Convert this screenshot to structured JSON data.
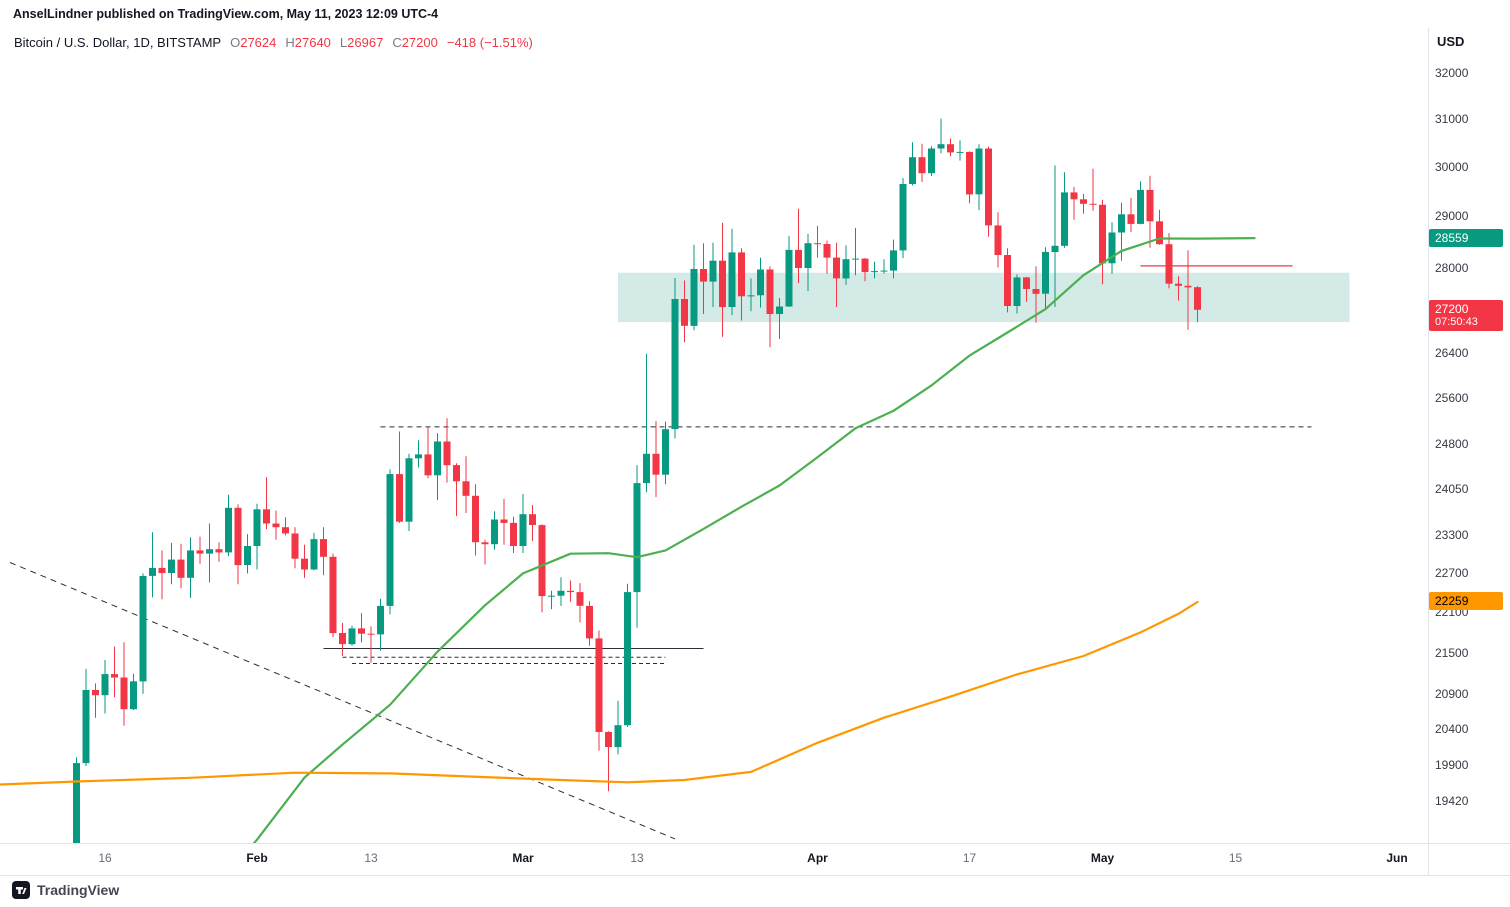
{
  "header": {
    "publisher_note": "AnselLindner published on TradingView.com, May 11, 2023 12:09 UTC-4"
  },
  "legend": {
    "symbol": "Bitcoin / U.S. Dollar, 1D, BITSTAMP",
    "o_label": "O",
    "o": "27624",
    "h_label": "H",
    "h": "27640",
    "l_label": "L",
    "l": "26967",
    "c_label": "C",
    "c": "27200",
    "change": "−418 (−1.51%)"
  },
  "axis": {
    "currency_label": "USD",
    "y_ticks": [
      {
        "label": "32000",
        "price": 32000
      },
      {
        "label": "31000",
        "price": 31000
      },
      {
        "label": "30000",
        "price": 30000
      },
      {
        "label": "29000",
        "price": 29000
      },
      {
        "label": "28000",
        "price": 28000
      },
      {
        "label": "26400",
        "price": 26400
      },
      {
        "label": "25600",
        "price": 25600
      },
      {
        "label": "24800",
        "price": 24800
      },
      {
        "label": "24050",
        "price": 24050
      },
      {
        "label": "23300",
        "price": 23300
      },
      {
        "label": "22700",
        "price": 22700
      },
      {
        "label": "22100",
        "price": 22100
      },
      {
        "label": "21500",
        "price": 21500
      },
      {
        "label": "20900",
        "price": 20900
      },
      {
        "label": "20400",
        "price": 20400
      },
      {
        "label": "19900",
        "price": 19900
      },
      {
        "label": "19420",
        "price": 19420
      }
    ],
    "x_ticks": [
      {
        "label": "16",
        "date": "2023-01-16",
        "strong": false
      },
      {
        "label": "Feb",
        "date": "2023-02-01",
        "strong": true
      },
      {
        "label": "13",
        "date": "2023-02-13",
        "strong": false
      },
      {
        "label": "Mar",
        "date": "2023-03-01",
        "strong": true
      },
      {
        "label": "13",
        "date": "2023-03-13",
        "strong": false
      },
      {
        "label": "Apr",
        "date": "2023-04-01",
        "strong": true
      },
      {
        "label": "17",
        "date": "2023-04-17",
        "strong": false
      },
      {
        "label": "May",
        "date": "2023-05-01",
        "strong": true
      },
      {
        "label": "15",
        "date": "2023-05-15",
        "strong": false
      },
      {
        "label": "Jun",
        "date": "2023-06-01",
        "strong": true
      }
    ]
  },
  "badges": [
    {
      "name": "ma-green-price-badge",
      "label": "28559",
      "price": 28559,
      "bg": "#089981",
      "fg": "#ffffff"
    },
    {
      "name": "last-price-badge",
      "label": "27200",
      "sub": "07:50:43",
      "price": 27200,
      "bg": "#f23645",
      "fg": "#ffffff"
    },
    {
      "name": "ma-orange-price-badge",
      "label": "22259",
      "price": 22259,
      "bg": "#ff9800",
      "fg": "#000000"
    }
  ],
  "footer": {
    "brand": "TradingView"
  },
  "chart_data": {
    "type": "candlestick",
    "title": "Bitcoin / U.S. Dollar",
    "interval": "1D",
    "exchange": "BITSTAMP",
    "scale": "log",
    "visible_price_range": [
      18876,
      32985
    ],
    "last_bar": {
      "open": 27624,
      "high": 27640,
      "low": 26967,
      "close": 27200,
      "change": -418,
      "change_pct": -1.51,
      "countdown": "07:50:43"
    },
    "colors": {
      "up": "#089981",
      "down": "#f23645"
    },
    "start_date": "2023-01-13",
    "candles": [
      [
        18850,
        20010,
        18720,
        19930
      ],
      [
        19930,
        21260,
        19890,
        20955
      ],
      [
        20955,
        21050,
        20560,
        20880
      ],
      [
        20880,
        21390,
        20620,
        21185
      ],
      [
        21185,
        21590,
        20850,
        21135
      ],
      [
        21135,
        21650,
        20450,
        20680
      ],
      [
        20680,
        21190,
        20670,
        21080
      ],
      [
        21080,
        22700,
        20900,
        22660
      ],
      [
        22660,
        23350,
        22330,
        22785
      ],
      [
        22785,
        23060,
        22300,
        22705
      ],
      [
        22705,
        23180,
        22530,
        22915
      ],
      [
        22915,
        23165,
        22470,
        22630
      ],
      [
        22630,
        23270,
        22320,
        23060
      ],
      [
        23060,
        23280,
        22850,
        23010
      ],
      [
        23010,
        23490,
        22560,
        23080
      ],
      [
        23080,
        23190,
        22880,
        23030
      ],
      [
        23030,
        23960,
        22970,
        23745
      ],
      [
        23745,
        23800,
        22530,
        22830
      ],
      [
        22830,
        23320,
        22700,
        23130
      ],
      [
        23130,
        23810,
        22760,
        23720
      ],
      [
        23720,
        24250,
        23400,
        23490
      ],
      [
        23490,
        23700,
        23230,
        23430
      ],
      [
        23430,
        23590,
        23300,
        23330
      ],
      [
        23330,
        23430,
        22780,
        22930
      ],
      [
        22930,
        23150,
        22630,
        22760
      ],
      [
        22760,
        23340,
        22750,
        23240
      ],
      [
        23240,
        23430,
        22670,
        22960
      ],
      [
        22960,
        23010,
        21730,
        21790
      ],
      [
        21790,
        21940,
        21450,
        21625
      ],
      [
        21625,
        21900,
        21600,
        21860
      ],
      [
        21860,
        22090,
        21650,
        21780
      ],
      [
        21780,
        21890,
        21350,
        21770
      ],
      [
        21770,
        22310,
        21530,
        22200
      ],
      [
        22200,
        24380,
        22070,
        24300
      ],
      [
        24300,
        25020,
        23500,
        23520
      ],
      [
        23520,
        24640,
        23370,
        24565
      ],
      [
        24565,
        24870,
        24410,
        24630
      ],
      [
        24630,
        25100,
        24230,
        24280
      ],
      [
        24280,
        24990,
        23870,
        24850
      ],
      [
        24850,
        25250,
        24160,
        24450
      ],
      [
        24450,
        24480,
        23610,
        24180
      ],
      [
        24180,
        24600,
        23660,
        23940
      ],
      [
        23940,
        24130,
        22980,
        23190
      ],
      [
        23190,
        23230,
        22840,
        23160
      ],
      [
        23160,
        23690,
        23070,
        23555
      ],
      [
        23555,
        23890,
        23150,
        23500
      ],
      [
        23500,
        23600,
        23020,
        23130
      ],
      [
        23130,
        23970,
        23020,
        23640
      ],
      [
        23640,
        23790,
        23210,
        23465
      ],
      [
        23465,
        23480,
        22100,
        22350
      ],
      [
        22350,
        22430,
        22150,
        22355
      ],
      [
        22355,
        22640,
        22200,
        22430
      ],
      [
        22430,
        22590,
        22260,
        22410
      ],
      [
        22410,
        22550,
        21950,
        22200
      ],
      [
        22200,
        22270,
        21600,
        21710
      ],
      [
        21710,
        21830,
        20100,
        20360
      ],
      [
        20360,
        20370,
        19550,
        20150
      ],
      [
        20150,
        20800,
        20050,
        20455
      ],
      [
        20455,
        22540,
        20430,
        22410
      ],
      [
        22410,
        24450,
        21870,
        24150
      ],
      [
        24150,
        26390,
        24000,
        24640
      ],
      [
        24640,
        25200,
        23920,
        24290
      ],
      [
        24290,
        25190,
        24130,
        25060
      ],
      [
        25060,
        27800,
        24900,
        27400
      ],
      [
        27400,
        27750,
        26600,
        26900
      ],
      [
        26900,
        28440,
        26820,
        27970
      ],
      [
        27970,
        28470,
        27120,
        27730
      ],
      [
        27730,
        28480,
        27250,
        28130
      ],
      [
        28130,
        28870,
        26700,
        27250
      ],
      [
        27250,
        28750,
        27100,
        28290
      ],
      [
        28290,
        28370,
        27000,
        27450
      ],
      [
        27450,
        27790,
        27170,
        27470
      ],
      [
        27470,
        28190,
        27240,
        27960
      ],
      [
        27960,
        28020,
        26510,
        27120
      ],
      [
        27120,
        27420,
        26660,
        27260
      ],
      [
        27260,
        28610,
        27250,
        28340
      ],
      [
        28340,
        29150,
        27700,
        27990
      ],
      [
        27990,
        28650,
        27550,
        28470
      ],
      [
        28470,
        28810,
        28190,
        28455
      ],
      [
        28455,
        28520,
        27880,
        28190
      ],
      [
        28190,
        28480,
        27250,
        27790
      ],
      [
        27790,
        28430,
        27670,
        28160
      ],
      [
        28160,
        28770,
        27850,
        28170
      ],
      [
        28170,
        28180,
        27740,
        27910
      ],
      [
        27910,
        28110,
        27790,
        27930
      ],
      [
        27930,
        28160,
        27880,
        27940
      ],
      [
        27940,
        28540,
        27790,
        28330
      ],
      [
        28330,
        29770,
        28180,
        29650
      ],
      [
        29650,
        30510,
        29620,
        30200
      ],
      [
        30200,
        30480,
        29690,
        29870
      ],
      [
        29870,
        30430,
        29810,
        30380
      ],
      [
        30380,
        31010,
        30280,
        30470
      ],
      [
        30470,
        30590,
        30220,
        30300
      ],
      [
        30300,
        30550,
        30130,
        30310
      ],
      [
        30310,
        30320,
        29260,
        29440
      ],
      [
        29440,
        30470,
        29120,
        30380
      ],
      [
        30380,
        30420,
        28600,
        28820
      ],
      [
        28820,
        29080,
        28000,
        28240
      ],
      [
        28240,
        28370,
        27150,
        27270
      ],
      [
        27270,
        27870,
        27130,
        27810
      ],
      [
        27810,
        27820,
        27350,
        27590
      ],
      [
        27590,
        28020,
        26960,
        27500
      ],
      [
        27500,
        28390,
        27200,
        28300
      ],
      [
        28300,
        30030,
        27250,
        28420
      ],
      [
        28420,
        29890,
        28380,
        29480
      ],
      [
        29480,
        29590,
        28930,
        29340
      ],
      [
        29340,
        29450,
        29050,
        29250
      ],
      [
        29250,
        29960,
        29110,
        29230
      ],
      [
        29230,
        29330,
        27680,
        28080
      ],
      [
        28080,
        28880,
        27880,
        28680
      ],
      [
        28680,
        29270,
        28130,
        29040
      ],
      [
        29040,
        29370,
        28690,
        28850
      ],
      [
        28850,
        29700,
        28840,
        29530
      ],
      [
        29530,
        29820,
        28380,
        28900
      ],
      [
        28900,
        29130,
        28440,
        28450
      ],
      [
        28450,
        28670,
        27600,
        27690
      ],
      [
        27690,
        27830,
        27370,
        27650
      ],
      [
        27650,
        28330,
        26830,
        27620
      ],
      [
        27624,
        27640,
        26967,
        27200
      ]
    ],
    "overlays": [
      {
        "name": "ma-50-green-line",
        "color": "#4caf50",
        "last_value": 28559,
        "points": [
          [
            "2023-01-28",
            18350
          ],
          [
            "2023-02-01",
            18910
          ],
          [
            "2023-02-06",
            19733
          ],
          [
            "2023-02-10",
            20185
          ],
          [
            "2023-02-15",
            20744
          ],
          [
            "2023-02-20",
            21513
          ],
          [
            "2023-02-25",
            22208
          ],
          [
            "2023-03-01",
            22700
          ],
          [
            "2023-03-06",
            23009
          ],
          [
            "2023-03-10",
            23016
          ],
          [
            "2023-03-13",
            22953
          ],
          [
            "2023-03-16",
            23061
          ],
          [
            "2023-03-20",
            23404
          ],
          [
            "2023-03-24",
            23763
          ],
          [
            "2023-03-28",
            24110
          ],
          [
            "2023-04-01",
            24582
          ],
          [
            "2023-04-05",
            25076
          ],
          [
            "2023-04-09",
            25378
          ],
          [
            "2023-04-13",
            25825
          ],
          [
            "2023-04-17",
            26358
          ],
          [
            "2023-04-21",
            26778
          ],
          [
            "2023-04-25",
            27211
          ],
          [
            "2023-04-29",
            27852
          ],
          [
            "2023-05-03",
            28320
          ],
          [
            "2023-05-07",
            28562
          ],
          [
            "2023-05-11",
            28559
          ],
          [
            "2023-05-17",
            28570
          ]
        ]
      },
      {
        "name": "ma-200-orange-line",
        "color": "#ff9800",
        "last_value": 22259,
        "points": [
          [
            "2023-01-05",
            19640
          ],
          [
            "2023-01-13",
            19680
          ],
          [
            "2023-01-25",
            19730
          ],
          [
            "2023-02-05",
            19800
          ],
          [
            "2023-02-15",
            19790
          ],
          [
            "2023-02-25",
            19740
          ],
          [
            "2023-03-05",
            19700
          ],
          [
            "2023-03-12",
            19670
          ],
          [
            "2023-03-18",
            19700
          ],
          [
            "2023-03-25",
            19810
          ],
          [
            "2023-04-01",
            20210
          ],
          [
            "2023-04-08",
            20560
          ],
          [
            "2023-04-15",
            20860
          ],
          [
            "2023-04-22",
            21180
          ],
          [
            "2023-04-29",
            21450
          ],
          [
            "2023-05-05",
            21800
          ],
          [
            "2023-05-09",
            22080
          ],
          [
            "2023-05-11",
            22259
          ]
        ]
      }
    ],
    "zones": [
      {
        "name": "support-zone-teal",
        "from": "2023-03-11",
        "to": "2023-05-27",
        "top": 27900,
        "bottom": 26970,
        "fill": "rgba(131,196,187,0.35)"
      }
    ],
    "lines": [
      {
        "name": "downtrend-dashed-line",
        "from": [
          "2023-01-06",
          22870
        ],
        "to": [
          "2023-03-17",
          18920
        ],
        "color": "#2a2e39",
        "dash": "6,5",
        "width": 1
      },
      {
        "name": "resistance-dashed-line-25100",
        "from": [
          "2023-02-14",
          25100
        ],
        "to": [
          "2023-05-23",
          25100
        ],
        "color": "#2a2e39",
        "dash": "5,4",
        "width": 1
      },
      {
        "name": "support-solid-line-21560",
        "from": [
          "2023-02-08",
          21560
        ],
        "to": [
          "2023-03-20",
          21560
        ],
        "color": "#2a2e39",
        "width": 1
      },
      {
        "name": "support-dashed-line-21430",
        "from": [
          "2023-02-10",
          21430
        ],
        "to": [
          "2023-03-16",
          21430
        ],
        "color": "#2a2e39",
        "dash": "4,3",
        "width": 1
      },
      {
        "name": "support-dashed-line-21340",
        "from": [
          "2023-02-11",
          21340
        ],
        "to": [
          "2023-03-16",
          21340
        ],
        "color": "#2a2e39",
        "dash": "4,3",
        "width": 1
      },
      {
        "name": "alert-red-line-28030",
        "from": [
          "2023-05-05",
          28030
        ],
        "to": [
          "2023-05-21",
          28030
        ],
        "color": "#f23645",
        "width": 1.2
      }
    ]
  }
}
